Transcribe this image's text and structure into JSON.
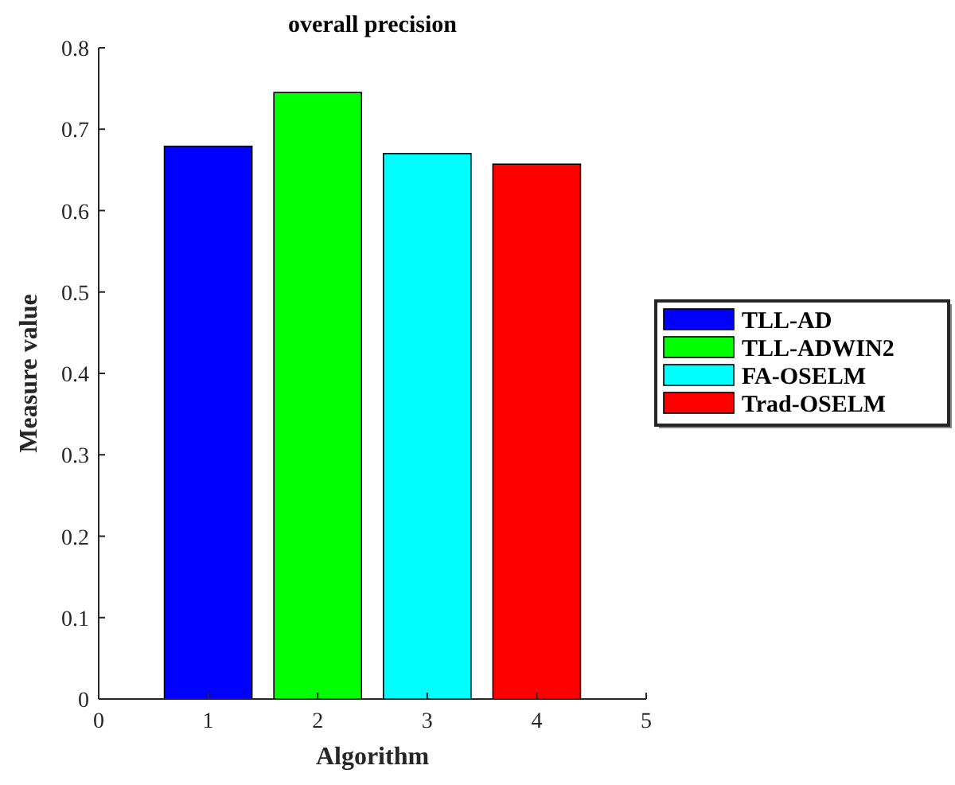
{
  "chart_data": {
    "type": "bar",
    "title": "overall precision",
    "xlabel": "Algorithm",
    "ylabel": "Measure value",
    "xlim": [
      0,
      5
    ],
    "xticks": [
      0,
      1,
      2,
      3,
      4,
      5
    ],
    "ylim": [
      0,
      0.8
    ],
    "yticks": [
      0,
      0.1,
      0.2,
      0.3,
      0.4,
      0.5,
      0.6,
      0.7,
      0.8
    ],
    "legend": "right",
    "grid": false,
    "series": [
      {
        "name": "TLL-AD",
        "color": "#0000ff",
        "x": [
          1
        ],
        "values": [
          0.679
        ]
      },
      {
        "name": "TLL-ADWIN2",
        "color": "#00ff00",
        "x": [
          2
        ],
        "values": [
          0.745
        ]
      },
      {
        "name": "FA-OSELM",
        "color": "#00ffff",
        "x": [
          3
        ],
        "values": [
          0.67
        ]
      },
      {
        "name": "Trad-OSELM",
        "color": "#ff0000",
        "x": [
          4
        ],
        "values": [
          0.657
        ]
      }
    ]
  }
}
